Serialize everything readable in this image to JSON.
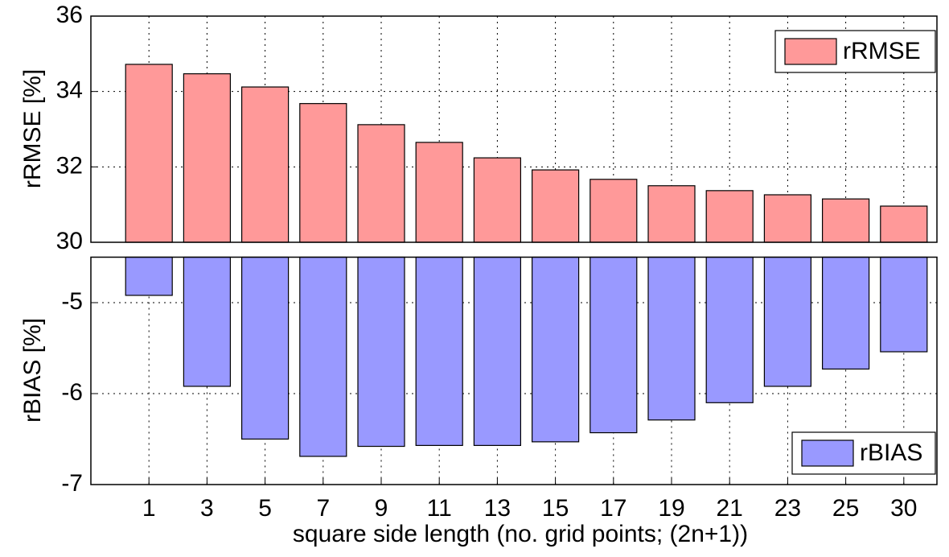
{
  "chart_data": [
    {
      "type": "bar",
      "ylabel": "rRMSE [%]",
      "series": [
        {
          "name": "rRMSE",
          "color": "#ff9999",
          "values": [
            34.72,
            34.47,
            34.12,
            33.68,
            33.12,
            32.65,
            32.24,
            31.92,
            31.67,
            31.5,
            31.37,
            31.26,
            31.15,
            30.96
          ]
        }
      ],
      "ylim": [
        30,
        36
      ],
      "yticks": [
        30,
        32,
        34,
        36
      ],
      "grid": true,
      "legend": "upper right"
    },
    {
      "type": "bar",
      "ylabel": "rBIAS [%]",
      "xlabel": "square side length (no. grid points; (2n+1))",
      "categories": [
        "1",
        "3",
        "5",
        "7",
        "9",
        "11",
        "13",
        "15",
        "17",
        "19",
        "21",
        "23",
        "25",
        "30"
      ],
      "series": [
        {
          "name": "rBIAS",
          "color": "#9999ff",
          "values": [
            -4.92,
            -5.92,
            -6.5,
            -6.69,
            -6.58,
            -6.57,
            -6.57,
            -6.53,
            -6.43,
            -6.29,
            -6.1,
            -5.92,
            -5.73,
            -5.54
          ]
        }
      ],
      "ylim": [
        -7,
        -4.5
      ],
      "yticks": [
        -7,
        -6,
        -5
      ],
      "grid": true,
      "legend": "lower right"
    }
  ]
}
